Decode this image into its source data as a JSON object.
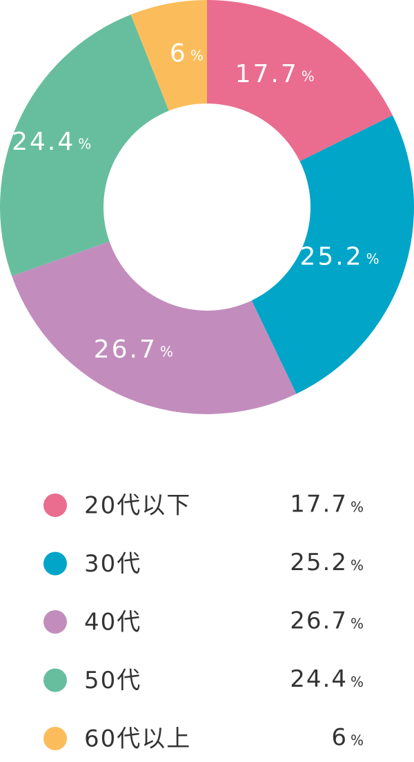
{
  "chart_data": {
    "type": "donut",
    "unit": "%",
    "categories": [
      "20代以下",
      "30代",
      "40代",
      "50代",
      "60代以上"
    ],
    "values": [
      17.7,
      25.2,
      26.7,
      24.4,
      6
    ],
    "colors": [
      "#ea6d8f",
      "#00a5c8",
      "#c28dbd",
      "#67be9f",
      "#fbbd5c"
    ]
  }
}
